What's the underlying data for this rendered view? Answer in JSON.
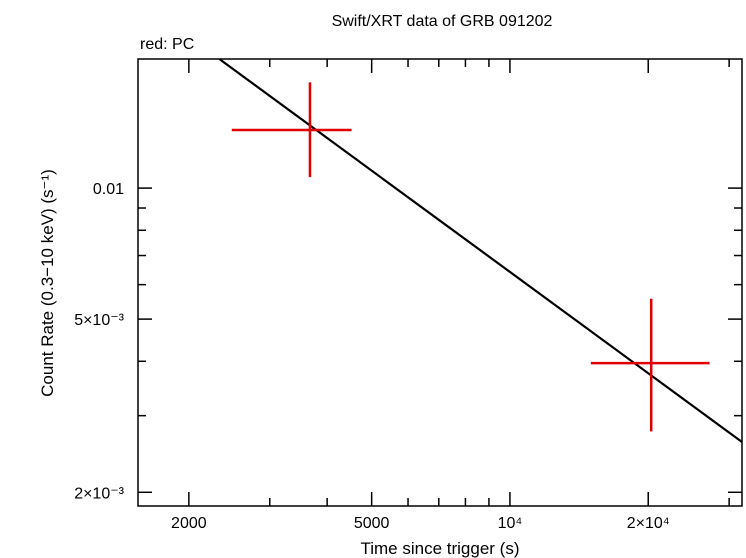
{
  "chart_data": {
    "type": "scatter",
    "title": "Swift/XRT data of GRB 091202",
    "subtitle": "red: PC",
    "xlabel": "Time since trigger (s)",
    "ylabel": "Count Rate (0.3−10 keV) (s⁻¹)",
    "xscale": "log",
    "yscale": "log",
    "xlim": [
      1550,
      32000
    ],
    "ylim": [
      0.00186,
      0.0198
    ],
    "x_ticks": [
      {
        "value": 2000,
        "label": "2000"
      },
      {
        "value": 5000,
        "label": "5000"
      },
      {
        "value": 10000,
        "label": "10⁴"
      },
      {
        "value": 20000,
        "label": "2×10⁴"
      }
    ],
    "y_ticks": [
      {
        "value": 0.01,
        "label": "0.01"
      },
      {
        "value": 0.005,
        "label": "5×10⁻³"
      },
      {
        "value": 0.002,
        "label": "2×10⁻³"
      }
    ],
    "series": [
      {
        "name": "PC",
        "color": "#e00000",
        "points": [
          {
            "x": 3670,
            "xlo": 2480,
            "xhi": 4520,
            "y": 0.0136,
            "ylo": 0.0106,
            "yhi": 0.0175
          },
          {
            "x": 20300,
            "xlo": 15000,
            "xhi": 27200,
            "y": 0.00396,
            "ylo": 0.00276,
            "yhi": 0.00557
          }
        ]
      }
    ],
    "model": {
      "name": "power-law fit",
      "color": "#000000",
      "x": [
        2330,
        32000
      ],
      "y": [
        0.0198,
        0.00261
      ]
    }
  }
}
